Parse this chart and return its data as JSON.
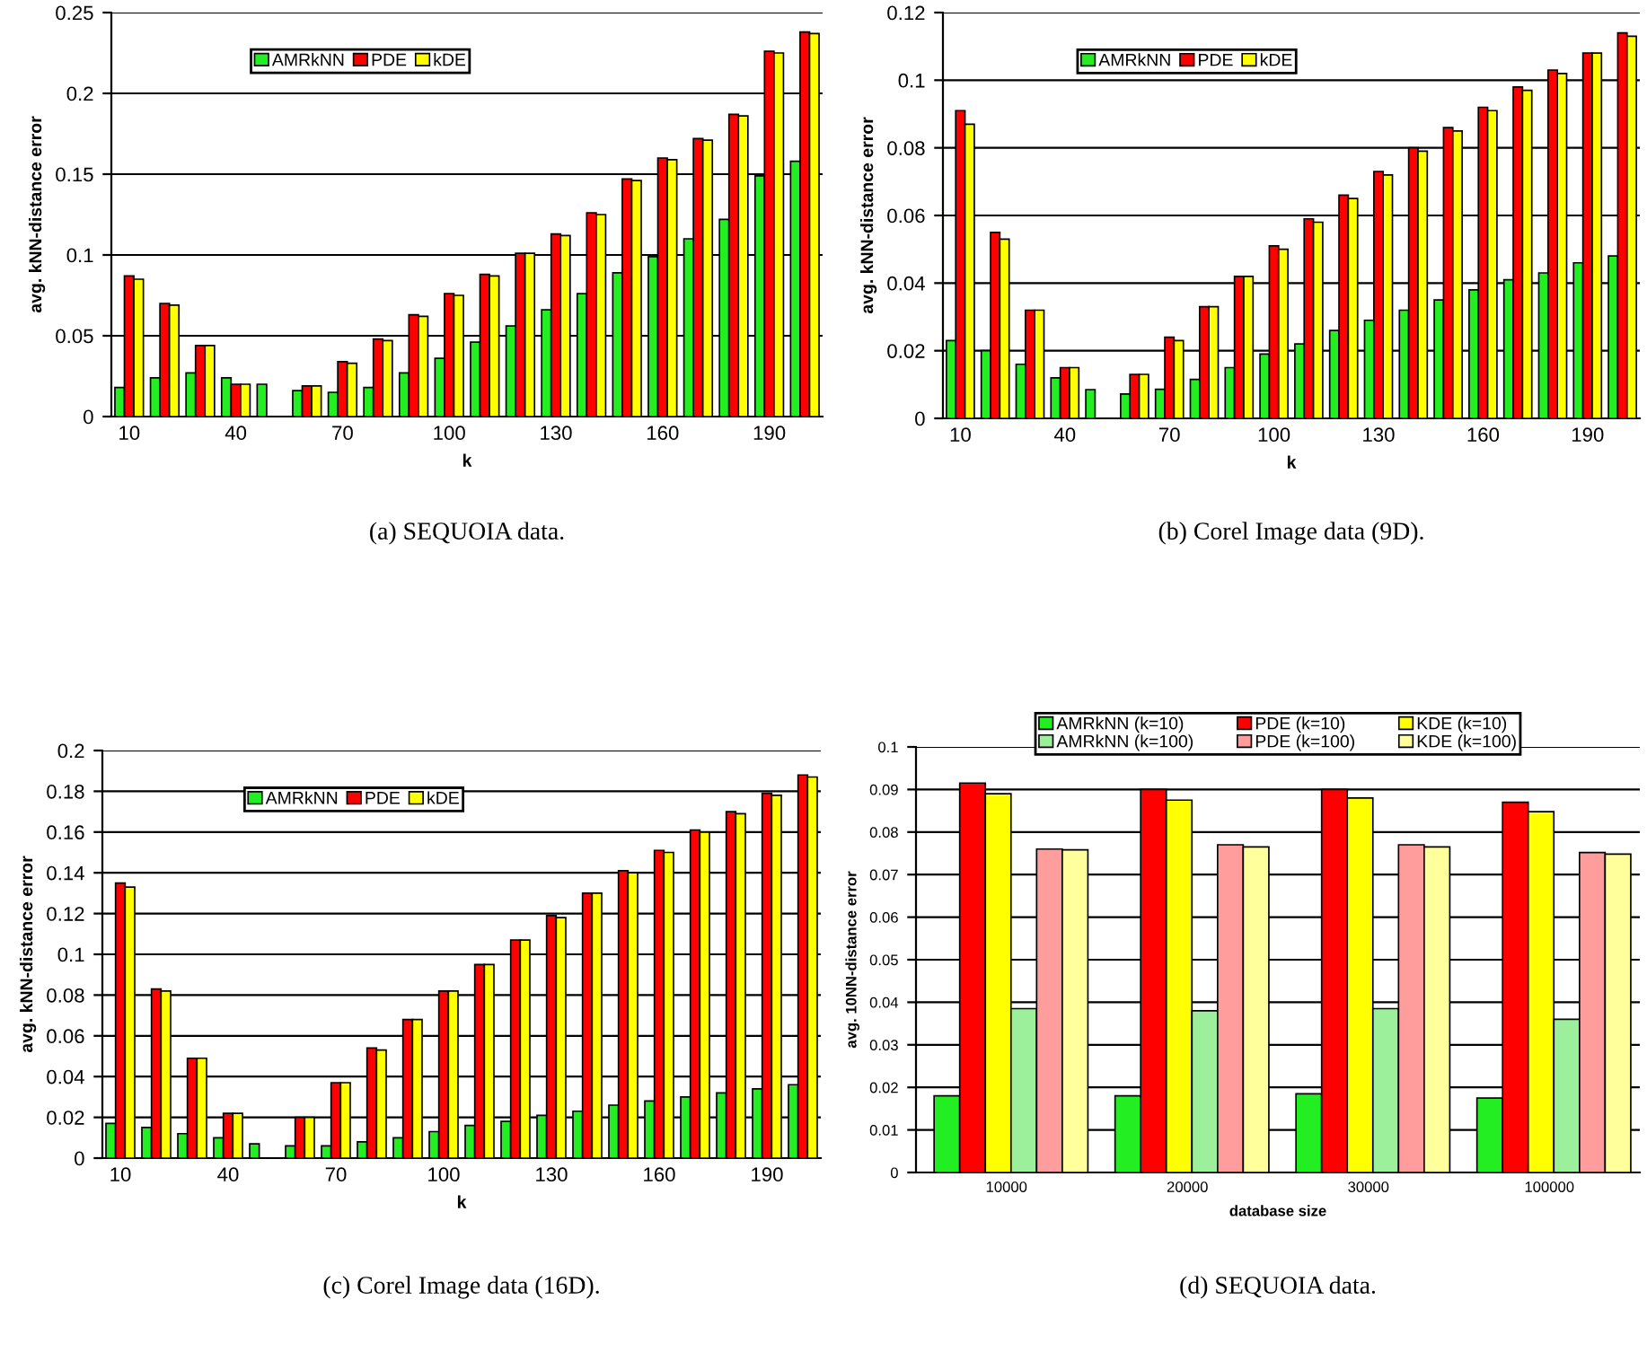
{
  "chart_data": [
    {
      "type": "bar",
      "xlabel": "k",
      "ylabel": "avg. kNN-distance error",
      "annotations": [
        "(a) SEQUOIA data."
      ],
      "categories": [
        "10",
        null,
        null,
        "40",
        null,
        null,
        "70",
        null,
        null,
        "100",
        null,
        null,
        "130",
        null,
        null,
        "160",
        null,
        null,
        "190",
        null
      ],
      "series": [
        {
          "name": "AMRkNN",
          "color": "#22ee22",
          "values": [
            0.018,
            0.024,
            0.027,
            0.024,
            0.02,
            0.016,
            0.015,
            0.018,
            0.027,
            0.036,
            0.046,
            0.056,
            0.066,
            0.076,
            0.089,
            0.099,
            0.11,
            0.122,
            0.149,
            0.158
          ]
        },
        {
          "name": "PDE",
          "color": "#ff0000",
          "values": [
            0.087,
            0.07,
            0.044,
            0.02,
            null,
            0.019,
            0.034,
            0.048,
            0.063,
            0.076,
            0.088,
            0.101,
            0.113,
            0.126,
            0.147,
            0.16,
            0.172,
            0.187,
            0.226,
            0.238
          ]
        },
        {
          "name": "kDE",
          "color": "#ffff00",
          "values": [
            0.085,
            0.069,
            0.044,
            0.02,
            null,
            0.019,
            0.033,
            0.047,
            0.062,
            0.075,
            0.087,
            0.101,
            0.112,
            0.125,
            0.146,
            0.159,
            0.171,
            0.186,
            0.225,
            0.237
          ]
        }
      ],
      "ylim": [
        0,
        0.25
      ],
      "yticks": [
        0,
        0.05,
        0.1,
        0.15,
        0.2,
        0.25
      ],
      "grid": "y",
      "legend": "top"
    },
    {
      "type": "bar",
      "xlabel": "k",
      "ylabel": "avg. kNN-distance error",
      "annotations": [
        "(b) Corel Image data (9D)."
      ],
      "categories": [
        "10",
        null,
        null,
        "40",
        null,
        null,
        "70",
        null,
        null,
        "100",
        null,
        null,
        "130",
        null,
        null,
        "160",
        null,
        null,
        "190",
        null
      ],
      "series": [
        {
          "name": "AMRkNN",
          "color": "#22ee22",
          "values": [
            0.023,
            0.02,
            0.016,
            0.012,
            0.0085,
            0.0072,
            0.0086,
            0.0115,
            0.015,
            0.019,
            0.022,
            0.026,
            0.029,
            0.032,
            0.035,
            0.038,
            0.041,
            0.043,
            0.046,
            0.048
          ]
        },
        {
          "name": "PDE",
          "color": "#ff0000",
          "values": [
            0.091,
            0.055,
            0.032,
            0.015,
            null,
            0.013,
            0.024,
            0.033,
            0.042,
            0.051,
            0.059,
            0.066,
            0.073,
            0.08,
            0.086,
            0.092,
            0.098,
            0.103,
            0.108,
            0.114
          ]
        },
        {
          "name": "kDE",
          "color": "#ffff00",
          "values": [
            0.087,
            0.053,
            0.032,
            0.015,
            null,
            0.013,
            0.023,
            0.033,
            0.042,
            0.05,
            0.058,
            0.065,
            0.072,
            0.079,
            0.085,
            0.091,
            0.097,
            0.102,
            0.108,
            0.113
          ]
        }
      ],
      "ylim": [
        0,
        0.12
      ],
      "yticks": [
        0,
        0.02,
        0.04,
        0.06,
        0.08,
        0.1,
        0.12
      ],
      "grid": "y",
      "legend": "top"
    },
    {
      "type": "bar",
      "xlabel": "k",
      "ylabel": "avg. kNN-distance error",
      "annotations": [
        "(c) Corel Image data (16D)."
      ],
      "categories": [
        "10",
        null,
        null,
        "40",
        null,
        null,
        "70",
        null,
        null,
        "100",
        null,
        null,
        "130",
        null,
        null,
        "160",
        null,
        null,
        "190",
        null
      ],
      "series": [
        {
          "name": "AMRkNN",
          "color": "#22ee22",
          "values": [
            0.017,
            0.015,
            0.012,
            0.01,
            0.007,
            0.006,
            0.006,
            0.008,
            0.01,
            0.013,
            0.016,
            0.018,
            0.021,
            0.023,
            0.026,
            0.028,
            0.03,
            0.032,
            0.034,
            0.036
          ]
        },
        {
          "name": "PDE",
          "color": "#ff0000",
          "values": [
            0.135,
            0.083,
            0.049,
            0.022,
            null,
            0.02,
            0.037,
            0.054,
            0.068,
            0.082,
            0.095,
            0.107,
            0.119,
            0.13,
            0.141,
            0.151,
            0.161,
            0.17,
            0.179,
            0.188
          ]
        },
        {
          "name": "kDE",
          "color": "#ffff00",
          "values": [
            0.133,
            0.082,
            0.049,
            0.022,
            null,
            0.02,
            0.037,
            0.053,
            0.068,
            0.082,
            0.095,
            0.107,
            0.118,
            0.13,
            0.14,
            0.15,
            0.16,
            0.169,
            0.178,
            0.187
          ]
        }
      ],
      "ylim": [
        0,
        0.2
      ],
      "yticks": [
        0,
        0.02,
        0.04,
        0.06,
        0.08,
        0.1,
        0.12,
        0.14,
        0.16,
        0.18,
        0.2
      ],
      "grid": "y",
      "legend": "top"
    },
    {
      "type": "bar",
      "xlabel": "database size",
      "ylabel": "avg. 10NN-distance error",
      "annotations": [
        "(d) SEQUOIA data."
      ],
      "categories": [
        "10000",
        "20000",
        "30000",
        "100000"
      ],
      "series": [
        {
          "name": "AMRkNN (k=10)",
          "color": "#22ee22",
          "values": [
            0.018,
            0.018,
            0.0185,
            0.0175
          ]
        },
        {
          "name": "PDE (k=10)",
          "color": "#ff0000",
          "values": [
            0.0915,
            0.09,
            0.09,
            0.087
          ]
        },
        {
          "name": "KDE (k=10)",
          "color": "#ffff00",
          "values": [
            0.089,
            0.0875,
            0.088,
            0.0848
          ]
        },
        {
          "name": "AMRkNN (k=100)",
          "color": "#9cf09c",
          "values": [
            0.0385,
            0.038,
            0.0385,
            0.036
          ]
        },
        {
          "name": "PDE (k=100)",
          "color": "#ff9c9c",
          "values": [
            0.076,
            0.077,
            0.077,
            0.0752
          ]
        },
        {
          "name": "KDE (k=100)",
          "color": "#ffff9c",
          "values": [
            0.0758,
            0.0765,
            0.0765,
            0.0748
          ]
        }
      ],
      "ylim": [
        0,
        0.1
      ],
      "yticks": [
        0,
        0.01,
        0.02,
        0.03,
        0.04,
        0.05,
        0.06,
        0.07,
        0.08,
        0.09,
        0.1
      ],
      "grid": "y",
      "legend": "top"
    }
  ]
}
